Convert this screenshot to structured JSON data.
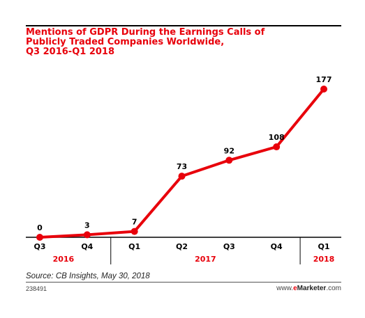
{
  "title_lines": [
    "Mentions of GDPR During the Earnings Calls of",
    "Publicly Traded Companies Worldwide,",
    "Q3 2016-Q1 2018"
  ],
  "source": "Source: CB Insights, May 30, 2018",
  "chart_id": "238491",
  "brand": {
    "prefix": "www.",
    "e": "e",
    "name": "Marketer",
    "suffix": ".com"
  },
  "colors": {
    "accent": "#e8000b",
    "text": "#000000"
  },
  "chart_data": {
    "type": "line",
    "x": [
      "Q3",
      "Q4",
      "Q1",
      "Q2",
      "Q3",
      "Q4",
      "Q1"
    ],
    "year_groups": [
      {
        "label": "2016",
        "start": 0,
        "end": 1
      },
      {
        "label": "2017",
        "start": 2,
        "end": 5
      },
      {
        "label": "2018",
        "start": 6,
        "end": 6
      }
    ],
    "values": [
      0,
      3,
      7,
      73,
      92,
      108,
      177
    ],
    "ylim": [
      0,
      177
    ],
    "grid": false,
    "data_labels": true
  }
}
